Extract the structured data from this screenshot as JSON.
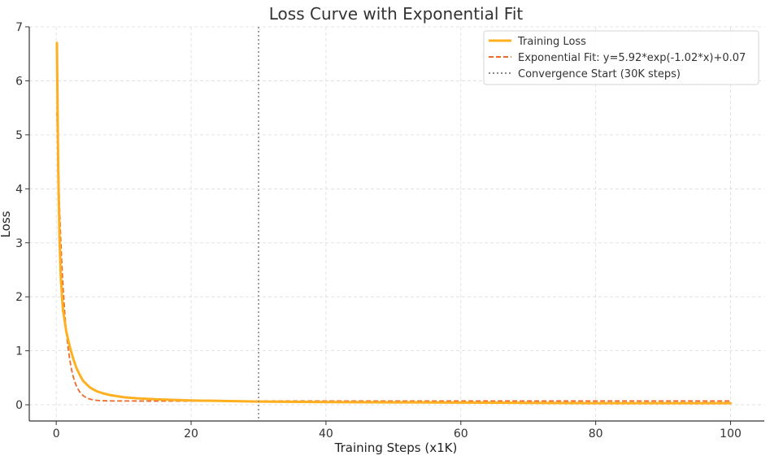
{
  "chart_data": {
    "type": "line",
    "title": "Loss Curve with Exponential Fit",
    "xlabel": "Training Steps (x1K)",
    "ylabel": "Loss",
    "xlim": [
      -4,
      105
    ],
    "ylim": [
      -0.3,
      7
    ],
    "x_ticks": [
      0,
      20,
      40,
      60,
      80,
      100
    ],
    "y_ticks": [
      0,
      1,
      2,
      3,
      4,
      5,
      6,
      7
    ],
    "grid": true,
    "legend_position": "top-right",
    "series": [
      {
        "name": "Training Loss",
        "color": "#FFB020",
        "style": "solid",
        "x": [
          0.1,
          0.3,
          0.5,
          0.7,
          1,
          1.5,
          2,
          2.5,
          3,
          3.5,
          4,
          5,
          6,
          7,
          8,
          10,
          12,
          15,
          20,
          25,
          30,
          40,
          50,
          60,
          70,
          80,
          90,
          100
        ],
        "y": [
          6.7,
          4.3,
          3.0,
          2.3,
          1.75,
          1.35,
          1.08,
          0.86,
          0.68,
          0.55,
          0.44,
          0.32,
          0.25,
          0.21,
          0.18,
          0.14,
          0.12,
          0.1,
          0.08,
          0.07,
          0.06,
          0.05,
          0.045,
          0.04,
          0.035,
          0.03,
          0.03,
          0.03
        ]
      },
      {
        "name": "Exponential Fit: y=5.92*exp(-1.02*x)+0.07",
        "color": "#EF6A2A",
        "style": "dashed",
        "fit": {
          "a": 5.92,
          "b": 1.02,
          "c": 0.07
        }
      }
    ],
    "vlines": [
      {
        "name": "Convergence Start (30K steps)",
        "x": 30,
        "color": "#888888",
        "style": "dotted"
      }
    ]
  }
}
